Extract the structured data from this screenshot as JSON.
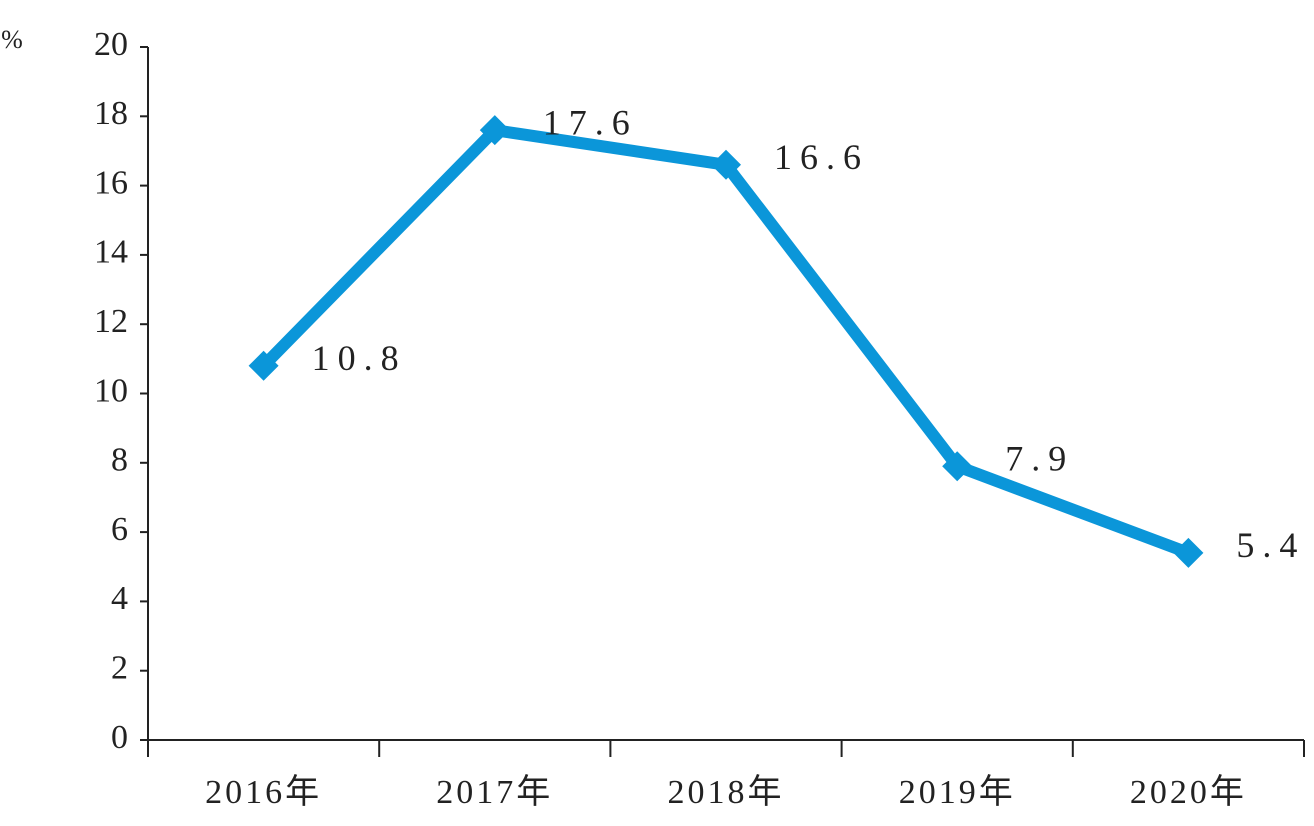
{
  "chart_data": {
    "type": "line",
    "y_label": "%",
    "categories": [
      "2016年",
      "2017年",
      "2018年",
      "2019年",
      "2020年"
    ],
    "values": [
      10.8,
      17.6,
      16.6,
      7.9,
      5.4
    ],
    "color": "#0b96d9",
    "ylim": [
      0,
      20
    ],
    "yticks": [
      0,
      2,
      4,
      6,
      8,
      10,
      12,
      14,
      16,
      18,
      20
    ],
    "data_labels": true
  }
}
